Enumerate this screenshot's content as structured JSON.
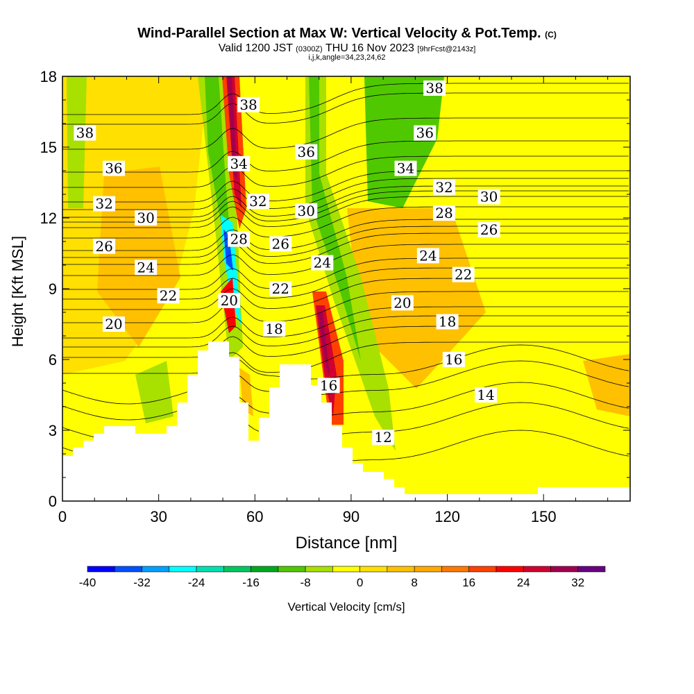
{
  "chart_data": {
    "type": "heatmap",
    "title": "Wind-Parallel Section at Max W: Vertical Velocity & Pot.Temp.",
    "title_mark": "(C)",
    "subtitle_main_a": "Valid 1200 JST",
    "subtitle_small_a": "(0300Z)",
    "subtitle_main_b": "THU 16 Nov 2023",
    "subtitle_small_b": "[9hrFcst@2143z]",
    "subtitle2": "i,j,k,angle=34,23,24,62",
    "xlabel": "Distance [nm]",
    "ylabel": "Height [Kft MSL]",
    "xlim": [
      0,
      177
    ],
    "ylim": [
      0,
      18
    ],
    "xticks": [
      "0",
      "30",
      "60",
      "90",
      "120",
      "150"
    ],
    "yticks": [
      "0",
      "3",
      "6",
      "9",
      "12",
      "15",
      "18"
    ],
    "colorbar": {
      "label": "Vertical Velocity [cm/s]",
      "levels": [
        -40,
        -36,
        -32,
        -28,
        -24,
        -20,
        -16,
        -12,
        -8,
        -4,
        0,
        4,
        8,
        12,
        16,
        20,
        24,
        28,
        32,
        36
      ],
      "tick_labels": [
        "-40",
        "-32",
        "-24",
        "-16",
        "-8",
        "0",
        "8",
        "16",
        "24",
        "32"
      ],
      "colors": [
        "#0000ff",
        "#0050ff",
        "#00a0ff",
        "#00ffff",
        "#00e0b0",
        "#00c860",
        "#00a820",
        "#50c800",
        "#a8e000",
        "#ffff00",
        "#ffe000",
        "#ffc000",
        "#ffa800",
        "#ff7800",
        "#ff4000",
        "#ff0000",
        "#d00030",
        "#a00050",
        "#680080"
      ]
    },
    "contour_labels": [
      {
        "text": "38",
        "x": 7,
        "y": 15.6
      },
      {
        "text": "36",
        "x": 16,
        "y": 14.1
      },
      {
        "text": "32",
        "x": 13,
        "y": 12.6
      },
      {
        "text": "30",
        "x": 26,
        "y": 12.0
      },
      {
        "text": "26",
        "x": 13,
        "y": 10.8
      },
      {
        "text": "24",
        "x": 26,
        "y": 9.9
      },
      {
        "text": "22",
        "x": 33,
        "y": 8.7
      },
      {
        "text": "20",
        "x": 16,
        "y": 7.5
      },
      {
        "text": "38",
        "x": 58,
        "y": 16.8
      },
      {
        "text": "34",
        "x": 55,
        "y": 14.3
      },
      {
        "text": "32",
        "x": 61,
        "y": 12.7
      },
      {
        "text": "28",
        "x": 55,
        "y": 11.1
      },
      {
        "text": "20",
        "x": 52,
        "y": 8.5
      },
      {
        "text": "26",
        "x": 68,
        "y": 10.9
      },
      {
        "text": "22",
        "x": 68,
        "y": 9.0
      },
      {
        "text": "18",
        "x": 66,
        "y": 7.3
      },
      {
        "text": "36",
        "x": 76,
        "y": 14.8
      },
      {
        "text": "30",
        "x": 76,
        "y": 12.3
      },
      {
        "text": "24",
        "x": 81,
        "y": 10.1
      },
      {
        "text": "16",
        "x": 83,
        "y": 4.9
      },
      {
        "text": "12",
        "x": 100,
        "y": 2.7
      },
      {
        "text": "38",
        "x": 116,
        "y": 17.5
      },
      {
        "text": "36",
        "x": 113,
        "y": 15.6
      },
      {
        "text": "34",
        "x": 107,
        "y": 14.1
      },
      {
        "text": "32",
        "x": 119,
        "y": 13.3
      },
      {
        "text": "30",
        "x": 133,
        "y": 12.9
      },
      {
        "text": "28",
        "x": 119,
        "y": 12.2
      },
      {
        "text": "26",
        "x": 133,
        "y": 11.5
      },
      {
        "text": "24",
        "x": 114,
        "y": 10.4
      },
      {
        "text": "22",
        "x": 125,
        "y": 9.6
      },
      {
        "text": "20",
        "x": 106,
        "y": 8.4
      },
      {
        "text": "18",
        "x": 120,
        "y": 7.6
      },
      {
        "text": "16",
        "x": 122,
        "y": 6.0
      },
      {
        "text": "14",
        "x": 132,
        "y": 4.5
      }
    ]
  }
}
